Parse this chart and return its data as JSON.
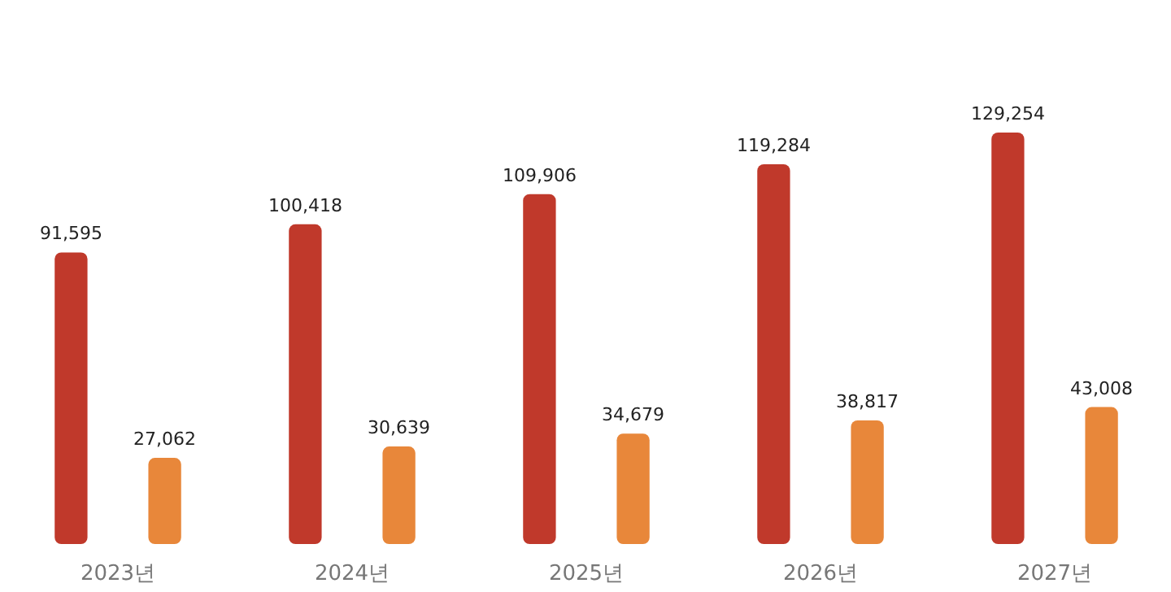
{
  "chart_data": {
    "type": "bar",
    "categories": [
      "2023년",
      "2024년",
      "2025년",
      "2026년",
      "2027년"
    ],
    "series": [
      {
        "color": "#c0392b",
        "values": [
          91595,
          100418,
          109906,
          119284,
          129254
        ],
        "value_labels": [
          "91,595",
          "100,418",
          "109,906",
          "119,284",
          "129,254"
        ]
      },
      {
        "color": "#e8873a",
        "values": [
          27062,
          30639,
          34679,
          38817,
          43008
        ],
        "value_labels": [
          "27,062",
          "30,639",
          "34,679",
          "38,817",
          "43,008"
        ]
      }
    ]
  }
}
